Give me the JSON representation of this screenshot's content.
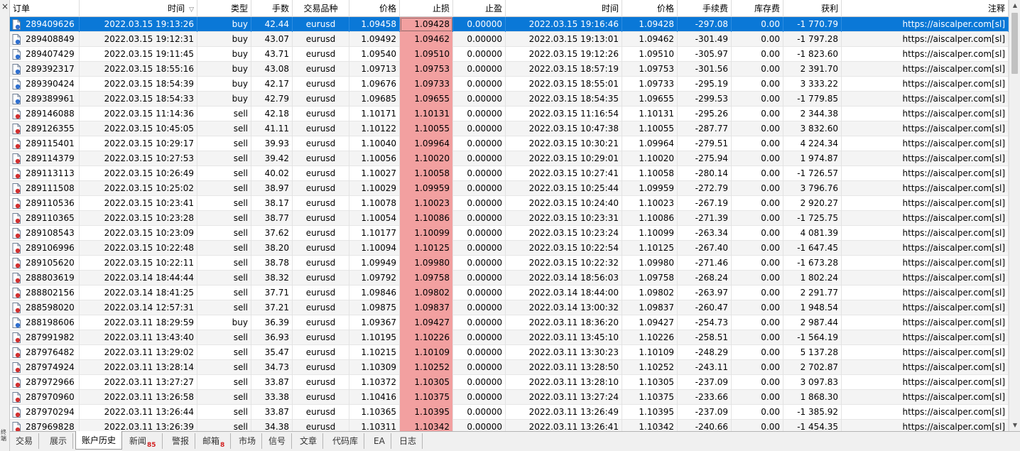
{
  "columns": [
    {
      "key": "order",
      "label": "订单"
    },
    {
      "key": "open_time",
      "label": "时间",
      "sort": "▽"
    },
    {
      "key": "type",
      "label": "类型"
    },
    {
      "key": "volume",
      "label": "手数"
    },
    {
      "key": "symbol",
      "label": "交易品种"
    },
    {
      "key": "open_price",
      "label": "价格"
    },
    {
      "key": "sl",
      "label": "止损"
    },
    {
      "key": "tp",
      "label": "止盈"
    },
    {
      "key": "close_time",
      "label": "时间"
    },
    {
      "key": "close_price",
      "label": "价格"
    },
    {
      "key": "commission",
      "label": "手续费"
    },
    {
      "key": "swap",
      "label": "库存费"
    },
    {
      "key": "profit",
      "label": "获利"
    },
    {
      "key": "comment",
      "label": "注释"
    }
  ],
  "rows": [
    [
      "289409626",
      "2022.03.15 19:13:26",
      "buy",
      "42.44",
      "eurusd",
      "1.09458",
      "1.09428",
      "0.00000",
      "2022.03.15 19:16:46",
      "1.09428",
      "-297.08",
      "0.00",
      "-1 770.79",
      "https://aiscalper.com[sl]"
    ],
    [
      "289408849",
      "2022.03.15 19:12:31",
      "buy",
      "43.07",
      "eurusd",
      "1.09492",
      "1.09462",
      "0.00000",
      "2022.03.15 19:13:01",
      "1.09462",
      "-301.49",
      "0.00",
      "-1 797.28",
      "https://aiscalper.com[sl]"
    ],
    [
      "289407429",
      "2022.03.15 19:11:45",
      "buy",
      "43.71",
      "eurusd",
      "1.09540",
      "1.09510",
      "0.00000",
      "2022.03.15 19:12:26",
      "1.09510",
      "-305.97",
      "0.00",
      "-1 823.60",
      "https://aiscalper.com[sl]"
    ],
    [
      "289392317",
      "2022.03.15 18:55:16",
      "buy",
      "43.08",
      "eurusd",
      "1.09713",
      "1.09753",
      "0.00000",
      "2022.03.15 18:57:19",
      "1.09753",
      "-301.56",
      "0.00",
      "2 391.70",
      "https://aiscalper.com[sl]"
    ],
    [
      "289390424",
      "2022.03.15 18:54:39",
      "buy",
      "42.17",
      "eurusd",
      "1.09676",
      "1.09733",
      "0.00000",
      "2022.03.15 18:55:01",
      "1.09733",
      "-295.19",
      "0.00",
      "3 333.22",
      "https://aiscalper.com[sl]"
    ],
    [
      "289389961",
      "2022.03.15 18:54:33",
      "buy",
      "42.79",
      "eurusd",
      "1.09685",
      "1.09655",
      "0.00000",
      "2022.03.15 18:54:35",
      "1.09655",
      "-299.53",
      "0.00",
      "-1 779.85",
      "https://aiscalper.com[sl]"
    ],
    [
      "289146088",
      "2022.03.15 11:14:36",
      "sell",
      "42.18",
      "eurusd",
      "1.10171",
      "1.10131",
      "0.00000",
      "2022.03.15 11:16:54",
      "1.10131",
      "-295.26",
      "0.00",
      "2 344.38",
      "https://aiscalper.com[sl]"
    ],
    [
      "289126355",
      "2022.03.15 10:45:05",
      "sell",
      "41.11",
      "eurusd",
      "1.10122",
      "1.10055",
      "0.00000",
      "2022.03.15 10:47:38",
      "1.10055",
      "-287.77",
      "0.00",
      "3 832.60",
      "https://aiscalper.com[sl]"
    ],
    [
      "289115401",
      "2022.03.15 10:29:17",
      "sell",
      "39.93",
      "eurusd",
      "1.10040",
      "1.09964",
      "0.00000",
      "2022.03.15 10:30:21",
      "1.09964",
      "-279.51",
      "0.00",
      "4 224.34",
      "https://aiscalper.com[sl]"
    ],
    [
      "289114379",
      "2022.03.15 10:27:53",
      "sell",
      "39.42",
      "eurusd",
      "1.10056",
      "1.10020",
      "0.00000",
      "2022.03.15 10:29:01",
      "1.10020",
      "-275.94",
      "0.00",
      "1 974.87",
      "https://aiscalper.com[sl]"
    ],
    [
      "289113113",
      "2022.03.15 10:26:49",
      "sell",
      "40.02",
      "eurusd",
      "1.10027",
      "1.10058",
      "0.00000",
      "2022.03.15 10:27:41",
      "1.10058",
      "-280.14",
      "0.00",
      "-1 726.57",
      "https://aiscalper.com[sl]"
    ],
    [
      "289111508",
      "2022.03.15 10:25:02",
      "sell",
      "38.97",
      "eurusd",
      "1.10029",
      "1.09959",
      "0.00000",
      "2022.03.15 10:25:44",
      "1.09959",
      "-272.79",
      "0.00",
      "3 796.76",
      "https://aiscalper.com[sl]"
    ],
    [
      "289110536",
      "2022.03.15 10:23:41",
      "sell",
      "38.17",
      "eurusd",
      "1.10078",
      "1.10023",
      "0.00000",
      "2022.03.15 10:24:40",
      "1.10023",
      "-267.19",
      "0.00",
      "2 920.27",
      "https://aiscalper.com[sl]"
    ],
    [
      "289110365",
      "2022.03.15 10:23:28",
      "sell",
      "38.77",
      "eurusd",
      "1.10054",
      "1.10086",
      "0.00000",
      "2022.03.15 10:23:31",
      "1.10086",
      "-271.39",
      "0.00",
      "-1 725.75",
      "https://aiscalper.com[sl]"
    ],
    [
      "289108543",
      "2022.03.15 10:23:09",
      "sell",
      "37.62",
      "eurusd",
      "1.10177",
      "1.10099",
      "0.00000",
      "2022.03.15 10:23:24",
      "1.10099",
      "-263.34",
      "0.00",
      "4 081.39",
      "https://aiscalper.com[sl]"
    ],
    [
      "289106996",
      "2022.03.15 10:22:48",
      "sell",
      "38.20",
      "eurusd",
      "1.10094",
      "1.10125",
      "0.00000",
      "2022.03.15 10:22:54",
      "1.10125",
      "-267.40",
      "0.00",
      "-1 647.45",
      "https://aiscalper.com[sl]"
    ],
    [
      "289105620",
      "2022.03.15 10:22:11",
      "sell",
      "38.78",
      "eurusd",
      "1.09949",
      "1.09980",
      "0.00000",
      "2022.03.15 10:22:32",
      "1.09980",
      "-271.46",
      "0.00",
      "-1 673.28",
      "https://aiscalper.com[sl]"
    ],
    [
      "288803619",
      "2022.03.14 18:44:44",
      "sell",
      "38.32",
      "eurusd",
      "1.09792",
      "1.09758",
      "0.00000",
      "2022.03.14 18:56:03",
      "1.09758",
      "-268.24",
      "0.00",
      "1 802.24",
      "https://aiscalper.com[sl]"
    ],
    [
      "288802156",
      "2022.03.14 18:41:25",
      "sell",
      "37.71",
      "eurusd",
      "1.09846",
      "1.09802",
      "0.00000",
      "2022.03.14 18:44:00",
      "1.09802",
      "-263.97",
      "0.00",
      "2 291.77",
      "https://aiscalper.com[sl]"
    ],
    [
      "288598020",
      "2022.03.14 12:57:31",
      "sell",
      "37.21",
      "eurusd",
      "1.09875",
      "1.09837",
      "0.00000",
      "2022.03.14 13:00:32",
      "1.09837",
      "-260.47",
      "0.00",
      "1 948.54",
      "https://aiscalper.com[sl]"
    ],
    [
      "288198606",
      "2022.03.11 18:29:59",
      "buy",
      "36.39",
      "eurusd",
      "1.09367",
      "1.09427",
      "0.00000",
      "2022.03.11 18:36:20",
      "1.09427",
      "-254.73",
      "0.00",
      "2 987.44",
      "https://aiscalper.com[sl]"
    ],
    [
      "287991982",
      "2022.03.11 13:43:40",
      "sell",
      "36.93",
      "eurusd",
      "1.10195",
      "1.10226",
      "0.00000",
      "2022.03.11 13:45:10",
      "1.10226",
      "-258.51",
      "0.00",
      "-1 564.19",
      "https://aiscalper.com[sl]"
    ],
    [
      "287976482",
      "2022.03.11 13:29:02",
      "sell",
      "35.47",
      "eurusd",
      "1.10215",
      "1.10109",
      "0.00000",
      "2022.03.11 13:30:23",
      "1.10109",
      "-248.29",
      "0.00",
      "5 137.28",
      "https://aiscalper.com[sl]"
    ],
    [
      "287974924",
      "2022.03.11 13:28:14",
      "sell",
      "34.73",
      "eurusd",
      "1.10309",
      "1.10252",
      "0.00000",
      "2022.03.11 13:28:50",
      "1.10252",
      "-243.11",
      "0.00",
      "2 702.87",
      "https://aiscalper.com[sl]"
    ],
    [
      "287972966",
      "2022.03.11 13:27:27",
      "sell",
      "33.87",
      "eurusd",
      "1.10372",
      "1.10305",
      "0.00000",
      "2022.03.11 13:28:10",
      "1.10305",
      "-237.09",
      "0.00",
      "3 097.83",
      "https://aiscalper.com[sl]"
    ],
    [
      "287970960",
      "2022.03.11 13:26:58",
      "sell",
      "33.38",
      "eurusd",
      "1.10416",
      "1.10375",
      "0.00000",
      "2022.03.11 13:27:24",
      "1.10375",
      "-233.66",
      "0.00",
      "1 868.30",
      "https://aiscalper.com[sl]"
    ],
    [
      "287970294",
      "2022.03.11 13:26:44",
      "sell",
      "33.87",
      "eurusd",
      "1.10365",
      "1.10395",
      "0.00000",
      "2022.03.11 13:26:49",
      "1.10395",
      "-237.09",
      "0.00",
      "-1 385.92",
      "https://aiscalper.com[sl]"
    ],
    [
      "287969828",
      "2022.03.11 13:26:39",
      "sell",
      "34.38",
      "eurusd",
      "1.10311",
      "1.10342",
      "0.00000",
      "2022.03.11 13:26:41",
      "1.10342",
      "-240.66",
      "0.00",
      "-1 454.35",
      "https://aiscalper.com[sl]"
    ]
  ],
  "selected_row": 0,
  "tabs": [
    {
      "label": "交易",
      "badge": ""
    },
    {
      "label": "展示",
      "badge": ""
    },
    {
      "label": "账户历史",
      "badge": "",
      "active": true
    },
    {
      "label": "新闻",
      "badge": "85"
    },
    {
      "label": "警报",
      "badge": ""
    },
    {
      "label": "邮箱",
      "badge": "8"
    },
    {
      "label": "市场",
      "badge": ""
    },
    {
      "label": "信号",
      "badge": ""
    },
    {
      "label": "文章",
      "badge": ""
    },
    {
      "label": "代码库",
      "badge": ""
    },
    {
      "label": "EA",
      "badge": ""
    },
    {
      "label": "日志",
      "badge": ""
    }
  ],
  "side_label": "终端",
  "close_glyph": "×",
  "scroll": {
    "up_glyph": "▲",
    "down_glyph": "▼"
  },
  "colors": {
    "selected": "#0a78d7",
    "sl_highlight": "#f2a0a0",
    "badge": "#d21f1f",
    "buy_icon": "#2e6fd0",
    "sell_icon": "#d23030"
  },
  "icons": {
    "buy": "buy-order-doc-icon",
    "sell": "sell-order-doc-icon"
  }
}
